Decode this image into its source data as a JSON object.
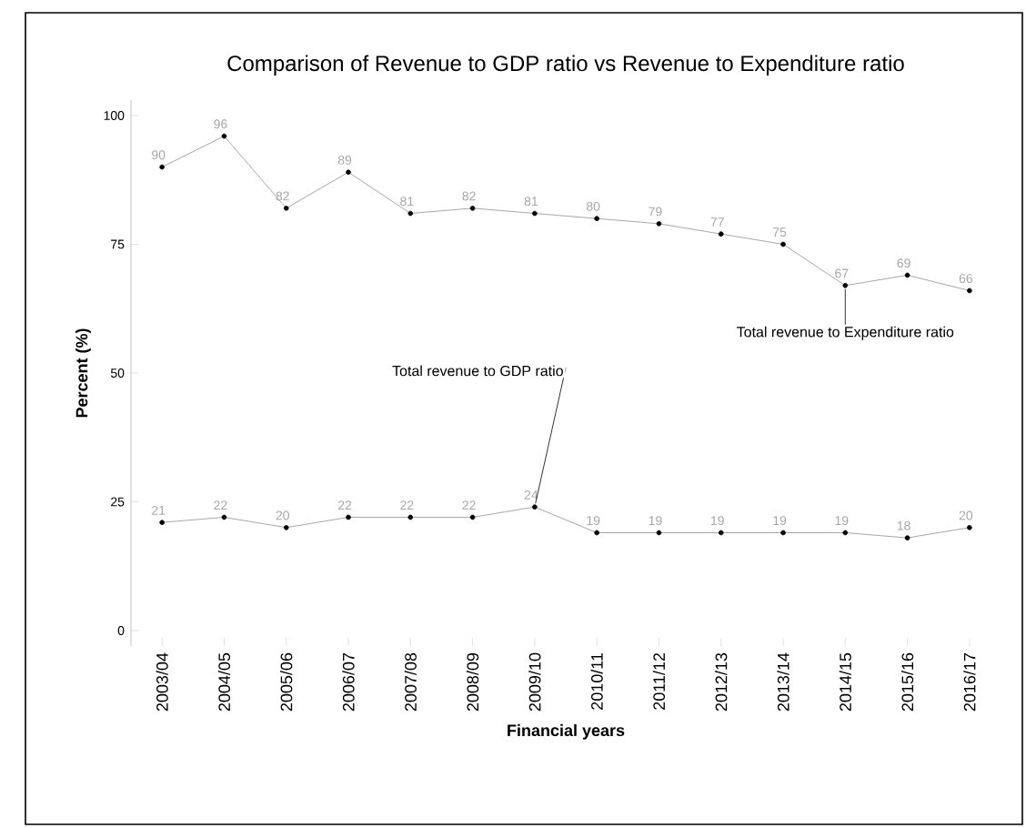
{
  "chart_data": {
    "type": "line",
    "title": "Comparison of Revenue to GDP ratio vs Revenue to Expenditure ratio",
    "xlabel": "Financial years",
    "ylabel": "Percent (%)",
    "categories": [
      "2003/04",
      "2004/05",
      "2005/06",
      "2006/07",
      "2007/08",
      "2008/09",
      "2009/10",
      "2010/11",
      "2011/12",
      "2012/13",
      "2013/14",
      "2014/15",
      "2015/16",
      "2016/17"
    ],
    "series": [
      {
        "name": "Total revenue to Expenditure ratio",
        "color": "#8a8fa8",
        "values": [
          90,
          96,
          82,
          89,
          81,
          82,
          81,
          80,
          79,
          77,
          75,
          67,
          69,
          66
        ]
      },
      {
        "name": "Total revenue to GDP ratio",
        "color": "#8a8fa8",
        "values": [
          21,
          22,
          20,
          22,
          22,
          22,
          24,
          19,
          19,
          19,
          19,
          19,
          18,
          20
        ]
      }
    ],
    "ylim": [
      -3,
      103
    ],
    "yticks": [
      0,
      25,
      50,
      75,
      100
    ],
    "data_labels": true,
    "marker": "circle",
    "grid": false,
    "legend": false
  }
}
